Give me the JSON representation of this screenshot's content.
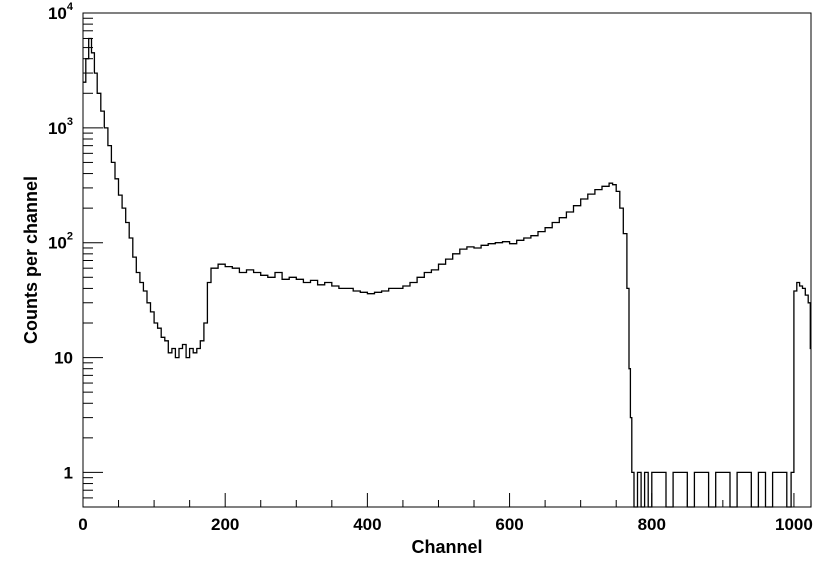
{
  "chart_data": {
    "type": "line",
    "style": "step-histogram",
    "xlabel": "Channel",
    "ylabel": "Counts per channel",
    "xlim": [
      0,
      1024
    ],
    "ylim": [
      0.5,
      10000
    ],
    "yscale": "log",
    "grid": false,
    "legend": "none",
    "x_ticks": [
      0,
      200,
      400,
      600,
      800,
      1000
    ],
    "x_tick_labels": [
      "0",
      "200",
      "400",
      "600",
      "800",
      "1000"
    ],
    "y_ticks": [
      1,
      10,
      100,
      1000,
      10000
    ],
    "y_tick_labels": [
      {
        "base": "1",
        "exp": ""
      },
      {
        "base": "10",
        "exp": ""
      },
      {
        "base": "10",
        "exp": "2"
      },
      {
        "base": "10",
        "exp": "3"
      },
      {
        "base": "10",
        "exp": "4"
      }
    ],
    "series": [
      {
        "color": "#000000",
        "x": [
          0,
          4,
          8,
          12,
          16,
          20,
          25,
          30,
          35,
          40,
          45,
          50,
          55,
          60,
          65,
          70,
          75,
          80,
          85,
          90,
          95,
          100,
          105,
          110,
          115,
          120,
          125,
          130,
          135,
          140,
          145,
          150,
          155,
          160,
          165,
          170,
          175,
          180,
          190,
          200,
          210,
          220,
          230,
          240,
          250,
          260,
          270,
          280,
          290,
          300,
          310,
          320,
          330,
          340,
          350,
          360,
          370,
          380,
          390,
          400,
          410,
          420,
          430,
          440,
          450,
          460,
          470,
          480,
          490,
          500,
          510,
          520,
          530,
          540,
          550,
          560,
          570,
          580,
          590,
          600,
          610,
          620,
          630,
          640,
          650,
          660,
          670,
          680,
          690,
          700,
          710,
          720,
          730,
          740,
          745,
          750,
          755,
          760,
          765,
          768,
          770,
          772,
          775,
          780,
          785,
          790,
          795,
          800,
          810,
          820,
          830,
          840,
          850,
          860,
          870,
          880,
          890,
          900,
          910,
          920,
          930,
          940,
          950,
          960,
          970,
          980,
          990,
          996,
          1000,
          1004,
          1008,
          1012,
          1016,
          1020,
          1023
        ],
        "values": [
          2500,
          4000,
          6000,
          4500,
          3000,
          2000,
          1400,
          1000,
          700,
          500,
          360,
          260,
          200,
          150,
          110,
          75,
          55,
          45,
          38,
          30,
          25,
          20,
          18,
          15,
          14,
          11,
          12,
          10,
          12,
          13,
          10,
          12,
          11,
          12,
          14,
          20,
          45,
          60,
          65,
          62,
          60,
          55,
          58,
          55,
          52,
          50,
          55,
          48,
          50,
          48,
          45,
          47,
          43,
          45,
          42,
          40,
          40,
          38,
          37,
          36,
          37,
          38,
          40,
          40,
          42,
          45,
          50,
          55,
          58,
          65,
          72,
          80,
          88,
          92,
          90,
          95,
          98,
          100,
          102,
          98,
          105,
          110,
          115,
          125,
          135,
          150,
          165,
          185,
          210,
          240,
          265,
          290,
          310,
          330,
          320,
          280,
          200,
          120,
          40,
          8,
          3,
          1,
          0.5,
          1,
          0.5,
          1,
          0.5,
          1,
          1,
          0.5,
          1,
          1,
          0.5,
          1,
          1,
          0.5,
          1,
          1,
          0.5,
          1,
          1,
          0.5,
          1,
          0.5,
          1,
          1,
          0.5,
          1,
          38,
          45,
          42,
          40,
          35,
          30,
          12
        ]
      }
    ]
  }
}
